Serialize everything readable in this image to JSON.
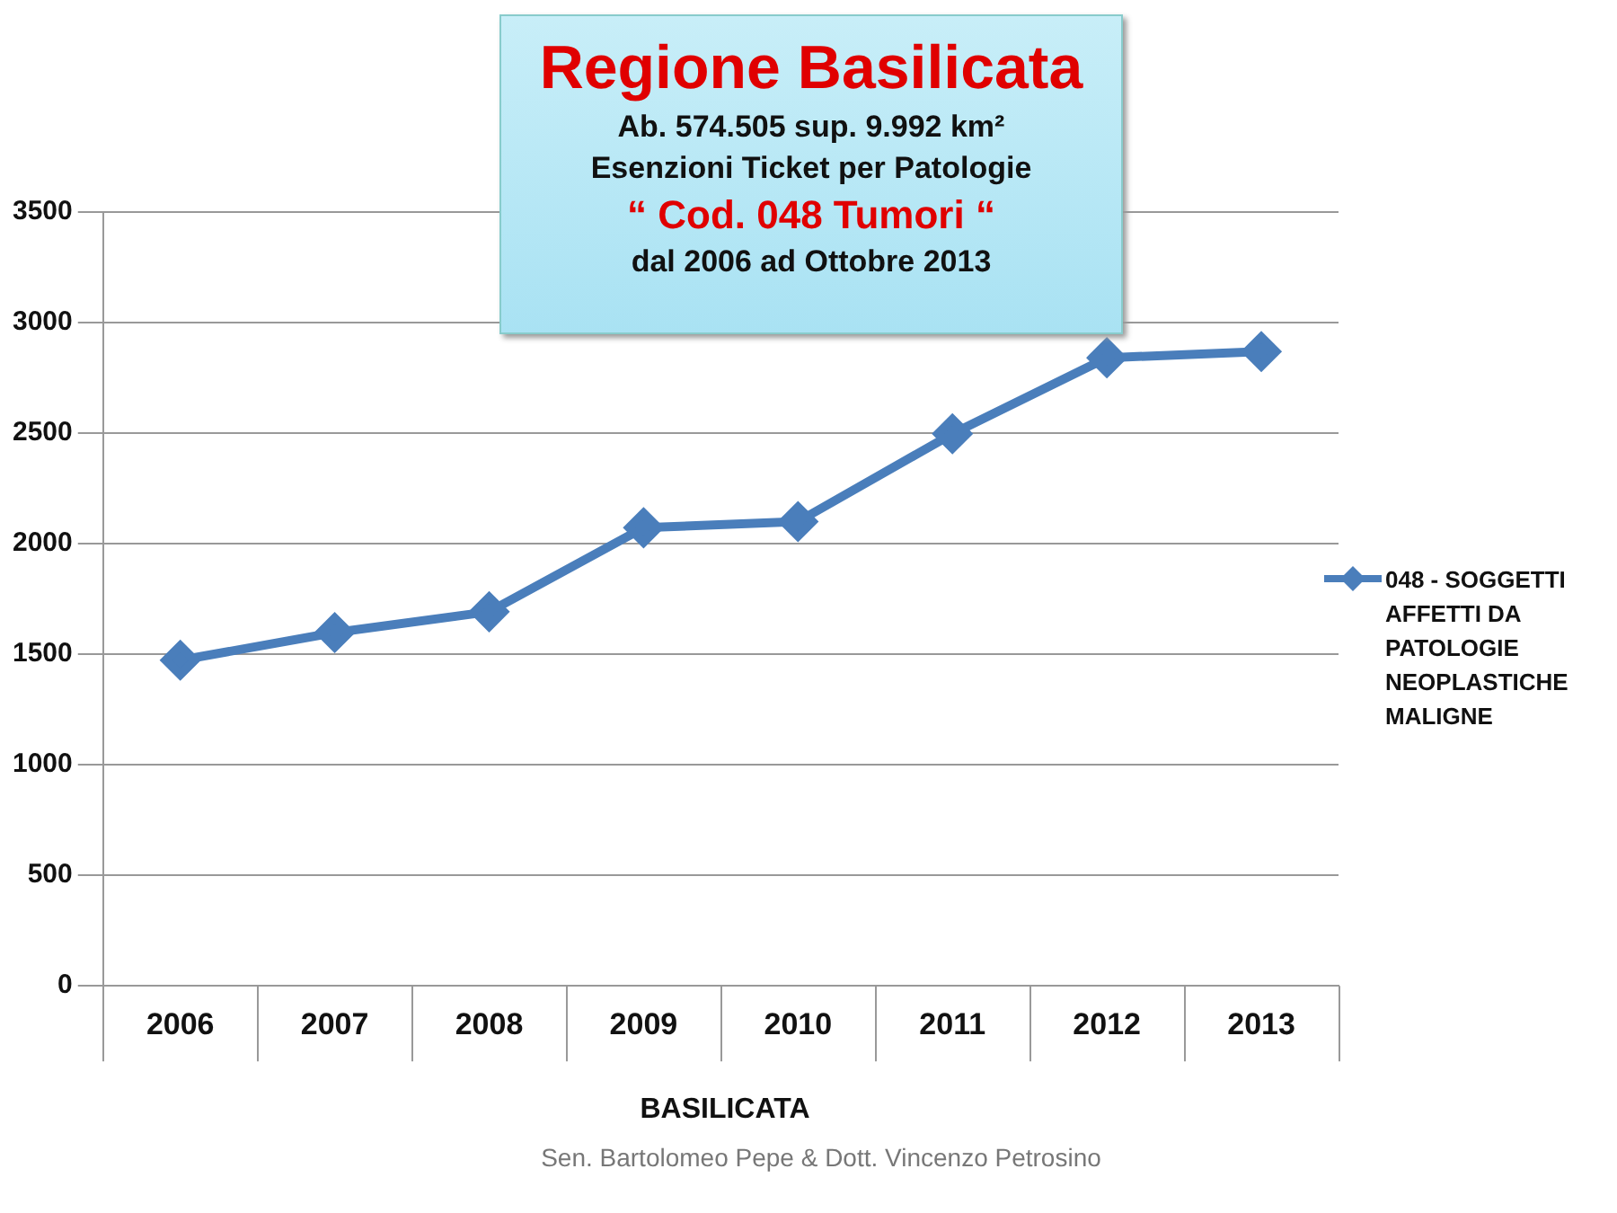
{
  "chart_data": {
    "type": "line",
    "title": "Regione Basilicata",
    "subtitle": "Ab. 574.505 sup. 9.992 km²",
    "annotations": [
      "Esenzioni Ticket per Patologie",
      "“ Cod. 048 Tumori “",
      "dal 2006 ad Ottobre 2013",
      "Sen. Bartolomeo Pepe & Dott. Vincenzo Petrosino"
    ],
    "xlabel": "BASILICATA",
    "categories": [
      "2006",
      "2007",
      "2008",
      "2009",
      "2010",
      "2011",
      "2012",
      "2013"
    ],
    "series": [
      {
        "name": "048 - SOGGETTI AFFETTI DA PATOLOGIE NEOPLASTICHE MALIGNE",
        "color": "#4a7ebb",
        "values": [
          1473,
          1598,
          1692,
          2072,
          2100,
          2497,
          2841,
          2869
        ]
      }
    ],
    "ylim": [
      0,
      3500
    ],
    "yticks": [
      0,
      500,
      1000,
      1500,
      2000,
      2500,
      3000,
      3500
    ],
    "grid": "y",
    "legend": "right",
    "marker": "diamond",
    "line_style": "solid"
  }
}
